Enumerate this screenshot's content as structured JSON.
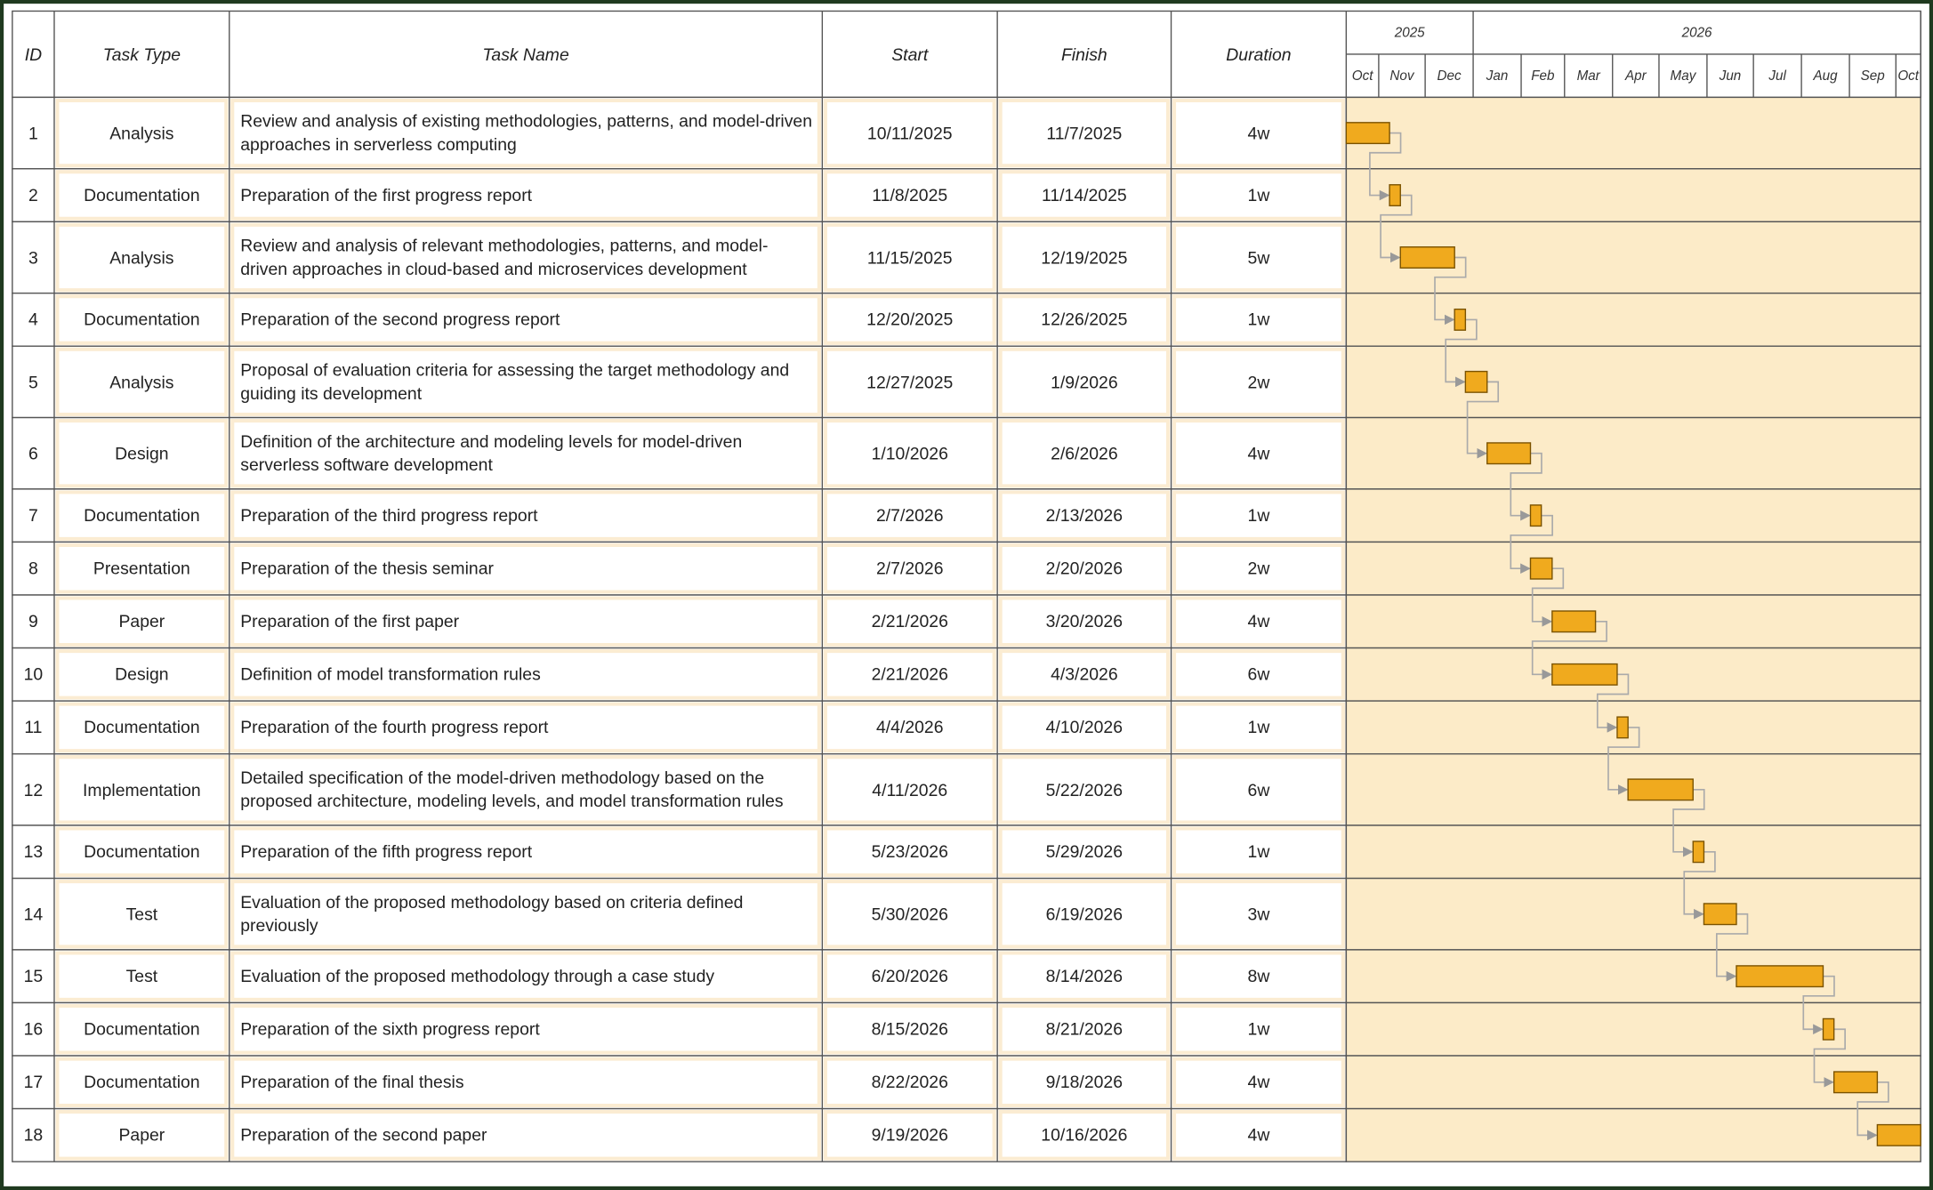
{
  "header": {
    "columns": [
      "ID",
      "Task Type",
      "Task Name",
      "Start",
      "Finish",
      "Duration"
    ],
    "years": [
      "2025",
      "2026"
    ],
    "months": [
      "Oct",
      "Nov",
      "Dec",
      "Jan",
      "Feb",
      "Mar",
      "Apr",
      "May",
      "Jun",
      "Jul",
      "Aug",
      "Sep",
      "Oct"
    ]
  },
  "tasks": [
    {
      "id": "1",
      "type": "Analysis",
      "name": "Review and analysis of existing methodologies, patterns, and model-driven approaches in serverless computing",
      "start": "10/11/2025",
      "finish": "11/7/2025",
      "duration": "4w"
    },
    {
      "id": "2",
      "type": "Documentation",
      "name": "Preparation of the first progress report",
      "start": "11/8/2025",
      "finish": "11/14/2025",
      "duration": "1w"
    },
    {
      "id": "3",
      "type": "Analysis",
      "name": "Review and analysis of relevant methodologies, patterns, and model-driven approaches in cloud-based and microservices development",
      "start": "11/15/2025",
      "finish": "12/19/2025",
      "duration": "5w"
    },
    {
      "id": "4",
      "type": "Documentation",
      "name": "Preparation of the second progress report",
      "start": "12/20/2025",
      "finish": "12/26/2025",
      "duration": "1w"
    },
    {
      "id": "5",
      "type": "Analysis",
      "name": "Proposal of evaluation criteria for assessing the target methodology and guiding its development",
      "start": "12/27/2025",
      "finish": "1/9/2026",
      "duration": "2w"
    },
    {
      "id": "6",
      "type": "Design",
      "name": "Definition of the architecture and modeling levels for model-driven serverless software development",
      "start": "1/10/2026",
      "finish": "2/6/2026",
      "duration": "4w"
    },
    {
      "id": "7",
      "type": "Documentation",
      "name": "Preparation of the third progress report",
      "start": "2/7/2026",
      "finish": "2/13/2026",
      "duration": "1w"
    },
    {
      "id": "8",
      "type": "Presentation",
      "name": "Preparation of the thesis seminar",
      "start": "2/7/2026",
      "finish": "2/20/2026",
      "duration": "2w"
    },
    {
      "id": "9",
      "type": "Paper",
      "name": "Preparation of the first paper",
      "start": "2/21/2026",
      "finish": "3/20/2026",
      "duration": "4w"
    },
    {
      "id": "10",
      "type": "Design",
      "name": "Definition of model transformation rules",
      "start": "2/21/2026",
      "finish": "4/3/2026",
      "duration": "6w"
    },
    {
      "id": "11",
      "type": "Documentation",
      "name": "Preparation of the fourth progress report",
      "start": "4/4/2026",
      "finish": "4/10/2026",
      "duration": "1w"
    },
    {
      "id": "12",
      "type": "Implementation",
      "name": "Detailed specification of the model-driven methodology based on the proposed architecture, modeling levels, and model transformation rules",
      "start": "4/11/2026",
      "finish": "5/22/2026",
      "duration": "6w"
    },
    {
      "id": "13",
      "type": "Documentation",
      "name": "Preparation of the fifth progress report",
      "start": "5/23/2026",
      "finish": "5/29/2026",
      "duration": "1w"
    },
    {
      "id": "14",
      "type": "Test",
      "name": "Evaluation of the proposed methodology based on criteria defined previously",
      "start": "5/30/2026",
      "finish": "6/19/2026",
      "duration": "3w"
    },
    {
      "id": "15",
      "type": "Test",
      "name": "Evaluation of the proposed methodology through a case study",
      "start": "6/20/2026",
      "finish": "8/14/2026",
      "duration": "8w"
    },
    {
      "id": "16",
      "type": "Documentation",
      "name": "Preparation of the sixth progress report",
      "start": "8/15/2026",
      "finish": "8/21/2026",
      "duration": "1w"
    },
    {
      "id": "17",
      "type": "Documentation",
      "name": "Preparation of the final thesis",
      "start": "8/22/2026",
      "finish": "9/18/2026",
      "duration": "4w"
    },
    {
      "id": "18",
      "type": "Paper",
      "name": "Preparation of the second paper",
      "start": "9/19/2026",
      "finish": "10/16/2026",
      "duration": "4w"
    }
  ]
}
